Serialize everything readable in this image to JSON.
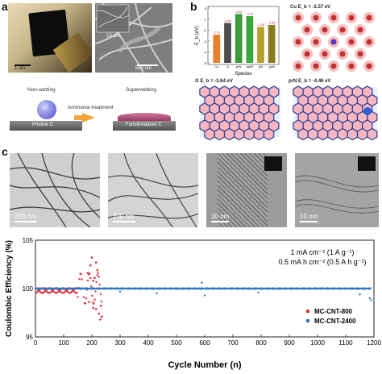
{
  "panel_letters": {
    "a": "a",
    "b": "b",
    "c": "c"
  },
  "panel_a": {
    "scale_photo": "1 cm",
    "scale_sem_inset": "10 μm",
    "scale_sem": "500 nm",
    "label_nonwetting": "Non-wetting",
    "label_superwetting": "Superwetting",
    "label_treatment": "Ammonia treatment",
    "label_li": "Li",
    "label_pristine": "Pristine C",
    "label_functionalized": "Functionalized C"
  },
  "panel_b": {
    "ylabel": "E_b (eV)",
    "xlabel": "Species",
    "cu_title": "Cu  E_b = -2.57 eV",
    "g_title": "G  E_b = -3.64 eV",
    "prn_title": "prN  E_b = -4.46 eV",
    "colors": {
      "Cu": "#e8822a",
      "G": "#4d4d4d",
      "prN": "#3a9b3a",
      "pyrN": "#3aa73a",
      "qN": "#b8a030",
      "pyN": "#8a7a20"
    }
  },
  "chart_data": [
    {
      "type": "bar",
      "categories": [
        "Cu",
        "G",
        "prN",
        "pyrN",
        "qN",
        "pyN"
      ],
      "values": [
        -2.57,
        -3.64,
        -4.46,
        -4.26,
        -3.28,
        -3.46
      ],
      "data_labels": [
        "-2.57",
        "-3.64",
        "-4.46",
        "-4.26",
        "-3.28",
        "-3.46"
      ],
      "ylabel": "E_b (eV)",
      "xlabel": "Species",
      "ylim": [
        -5,
        0
      ]
    },
    {
      "type": "scatter",
      "xlabel": "Cycle Number (n)",
      "ylabel": "Coulombic Efficiency (%)",
      "xlim": [
        0,
        1200
      ],
      "ylim": [
        95,
        105
      ],
      "xticks": [
        0,
        100,
        200,
        300,
        400,
        500,
        600,
        700,
        800,
        900,
        1000,
        1100,
        1200
      ],
      "yticks": [
        95,
        100,
        105
      ],
      "annotations": [
        "1 mA cm⁻² (1 A g⁻¹)",
        "0.5 mA h cm⁻² (0.5 A h g⁻¹)"
      ],
      "legend": "bottom-right",
      "series": [
        {
          "name": "MC-CNT-800",
          "color": "#e0303a",
          "summary": {
            "stable_until": 150,
            "mean": 99.8,
            "end_cycle": 235
          },
          "outliers": [
            [
              185,
              101.6
            ],
            [
              195,
              102.4
            ],
            [
              200,
              103.2
            ],
            [
              205,
              100.8
            ],
            [
              210,
              101.1
            ],
            [
              215,
              102.7
            ],
            [
              220,
              101.9
            ],
            [
              225,
              97.4
            ],
            [
              230,
              96.8
            ],
            [
              232,
              98.2
            ],
            [
              235,
              97.1
            ],
            [
              190,
              98.6
            ],
            [
              205,
              98.0
            ],
            [
              215,
              97.9
            ]
          ]
        },
        {
          "name": "MC-CNT-2400",
          "color": "#2a76c0",
          "summary": {
            "start": 0,
            "end": 1190,
            "mean": 100.0
          },
          "outliers": [
            [
              300,
              99.7
            ],
            [
              430,
              99.5
            ],
            [
              590,
              100.6
            ],
            [
              600,
              99.3
            ],
            [
              790,
              99.6
            ],
            [
              1150,
              99.4
            ],
            [
              1185,
              99.0
            ],
            [
              1190,
              98.8
            ]
          ]
        }
      ]
    }
  ],
  "panel_c_tem": {
    "scale_1": "200 nm",
    "scale_2": "200 nm",
    "scale_3": "10 nm",
    "scale_4": "10 nm"
  }
}
